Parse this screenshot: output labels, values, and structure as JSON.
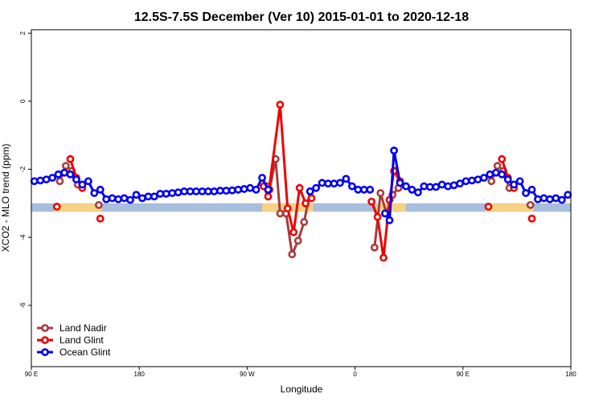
{
  "chart_data": {
    "type": "line",
    "title": "12.5S-7.5S December (Ver 10)   2015-01-01 to 2020-12-18",
    "xlabel": "Longitude",
    "ylabel": "XCO2 - MLO trend (ppm)",
    "xlim": [
      0,
      360
    ],
    "ylim": [
      -7.8,
      2.1
    ],
    "x_ticks": [
      {
        "value": 0,
        "label": "90 E"
      },
      {
        "value": 72,
        "label": "180"
      },
      {
        "value": 144,
        "label": "90 W"
      },
      {
        "value": 216,
        "label": "0"
      },
      {
        "value": 288,
        "label": "90 E"
      },
      {
        "value": 360,
        "label": "180"
      }
    ],
    "y_ticks": [
      {
        "value": 2,
        "label": "2"
      },
      {
        "value": 0,
        "label": "0"
      },
      {
        "value": -2,
        "label": "-2"
      },
      {
        "value": -4,
        "label": "-4"
      },
      {
        "value": -6,
        "label": "-6"
      }
    ],
    "grid": false,
    "legend_position": "bottom-left",
    "band": {
      "y_low": -3.25,
      "y_high": -3.0,
      "color": "#a8bedd"
    },
    "land_highlight": {
      "color": "#ffd37a",
      "x_ranges": [
        [
          15,
          47
        ],
        [
          154,
          188
        ],
        [
          230,
          250
        ],
        [
          303,
          335
        ]
      ]
    },
    "series": [
      {
        "name": "Land Nadir",
        "color": "#a83c3c",
        "segments": [
          [
            [
              19,
              -2.35
            ],
            [
              23,
              -1.9
            ],
            [
              27,
              -2.05
            ],
            [
              31,
              -2.45
            ]
          ],
          [
            [
              45,
              -3.05
            ]
          ],
          [
            [
              157,
              -2.5
            ],
            [
              159,
              -2.6
            ],
            [
              163,
              -1.7
            ],
            [
              166,
              -3.3
            ],
            [
              170,
              -3.3
            ],
            [
              174,
              -4.5
            ],
            [
              178,
              -4.1
            ],
            [
              182,
              -3.55
            ],
            [
              186,
              -2.65
            ]
          ],
          [
            [
              229,
              -4.3
            ],
            [
              233,
              -2.7
            ],
            [
              237,
              -3.3
            ],
            [
              241,
              -2.75
            ],
            [
              245,
              -2.55
            ]
          ],
          [
            [
              307,
              -2.35
            ],
            [
              311,
              -1.9
            ],
            [
              315,
              -2.05
            ],
            [
              319,
              -2.55
            ]
          ],
          [
            [
              333,
              -3.05
            ]
          ]
        ]
      },
      {
        "name": "Land Glint",
        "color": "#ee0000",
        "segments": [
          [
            [
              17,
              -3.1
            ]
          ],
          [
            [
              26,
              -1.7
            ],
            [
              30,
              -2.25
            ],
            [
              34,
              -2.55
            ]
          ],
          [
            [
              46,
              -3.45
            ]
          ],
          [
            [
              155,
              -2.5
            ],
            [
              158,
              -2.8
            ],
            [
              166,
              -0.1
            ],
            [
              171,
              -3.15
            ],
            [
              175,
              -3.85
            ],
            [
              179,
              -2.55
            ],
            [
              183,
              -3.0
            ],
            [
              187,
              -2.85
            ]
          ],
          [
            [
              227,
              -2.95
            ],
            [
              231,
              -3.4
            ],
            [
              235,
              -4.6
            ],
            [
              239,
              -2.9
            ],
            [
              242,
              -2.05
            ],
            [
              246,
              -2.35
            ]
          ],
          [
            [
              305,
              -3.1
            ]
          ],
          [
            [
              314,
              -1.7
            ],
            [
              318,
              -2.25
            ],
            [
              322,
              -2.55
            ]
          ],
          [
            [
              334,
              -3.45
            ]
          ]
        ]
      },
      {
        "name": "Ocean Glint",
        "color": "#0000ee",
        "segments": [
          [
            [
              2,
              -2.35
            ],
            [
              6,
              -2.33
            ],
            [
              10,
              -2.3
            ],
            [
              14,
              -2.25
            ],
            [
              18,
              -2.15
            ],
            [
              22,
              -2.1
            ],
            [
              26,
              -2.15
            ],
            [
              30,
              -2.3
            ],
            [
              34,
              -2.45
            ],
            [
              38,
              -2.35
            ],
            [
              42,
              -2.7
            ],
            [
              46,
              -2.6
            ],
            [
              50,
              -2.88
            ],
            [
              54,
              -2.85
            ],
            [
              58,
              -2.88
            ],
            [
              62,
              -2.85
            ],
            [
              66,
              -2.9
            ],
            [
              70,
              -2.75
            ],
            [
              74,
              -2.85
            ],
            [
              78,
              -2.8
            ],
            [
              82,
              -2.8
            ],
            [
              86,
              -2.72
            ],
            [
              90,
              -2.72
            ],
            [
              94,
              -2.7
            ],
            [
              98,
              -2.68
            ],
            [
              102,
              -2.65
            ],
            [
              106,
              -2.65
            ],
            [
              110,
              -2.65
            ],
            [
              114,
              -2.65
            ],
            [
              118,
              -2.65
            ],
            [
              122,
              -2.65
            ],
            [
              126,
              -2.63
            ],
            [
              130,
              -2.63
            ],
            [
              134,
              -2.62
            ],
            [
              138,
              -2.6
            ],
            [
              142,
              -2.58
            ],
            [
              146,
              -2.55
            ],
            [
              150,
              -2.6
            ],
            [
              154,
              -2.25
            ],
            [
              158,
              -2.6
            ]
          ],
          [
            [
              186,
              -2.65
            ],
            [
              190,
              -2.55
            ],
            [
              194,
              -2.4
            ],
            [
              198,
              -2.42
            ],
            [
              202,
              -2.42
            ],
            [
              206,
              -2.4
            ],
            [
              210,
              -2.28
            ],
            [
              214,
              -2.5
            ],
            [
              218,
              -2.6
            ],
            [
              222,
              -2.6
            ],
            [
              226,
              -2.6
            ]
          ],
          [
            [
              236,
              -3.3
            ],
            [
              239,
              -3.5
            ],
            [
              242,
              -1.45
            ],
            [
              246,
              -2.4
            ],
            [
              250,
              -2.5
            ],
            [
              254,
              -2.6
            ],
            [
              258,
              -2.68
            ],
            [
              262,
              -2.5
            ],
            [
              266,
              -2.52
            ],
            [
              270,
              -2.52
            ],
            [
              274,
              -2.45
            ],
            [
              278,
              -2.5
            ],
            [
              282,
              -2.47
            ],
            [
              286,
              -2.42
            ],
            [
              290,
              -2.35
            ],
            [
              294,
              -2.33
            ],
            [
              298,
              -2.3
            ],
            [
              302,
              -2.25
            ],
            [
              306,
              -2.15
            ],
            [
              310,
              -2.1
            ],
            [
              314,
              -2.15
            ],
            [
              318,
              -2.3
            ],
            [
              322,
              -2.45
            ],
            [
              326,
              -2.35
            ],
            [
              330,
              -2.7
            ],
            [
              334,
              -2.6
            ],
            [
              338,
              -2.88
            ],
            [
              342,
              -2.85
            ],
            [
              346,
              -2.88
            ],
            [
              350,
              -2.85
            ],
            [
              354,
              -2.9
            ],
            [
              358,
              -2.75
            ]
          ]
        ]
      }
    ]
  }
}
